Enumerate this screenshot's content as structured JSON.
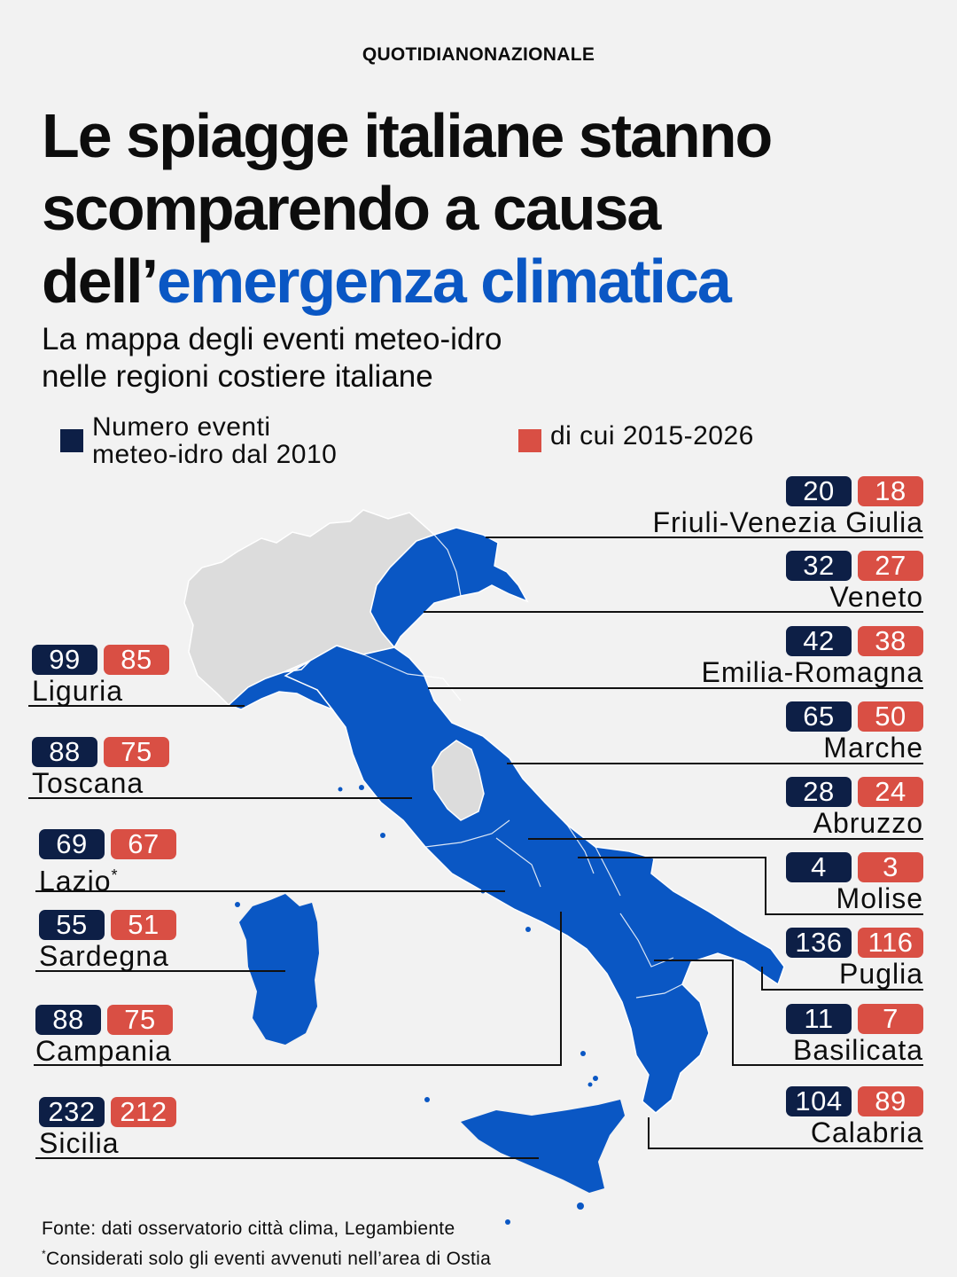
{
  "brand": "QUOTIDIANONAZIONALE",
  "title": {
    "line1": "Le spiagge italiane stanno",
    "line2": "scomparendo a causa",
    "line3_prefix": "dell’",
    "line3_highlight": "emergenza climatica"
  },
  "subtitle": {
    "line1": "La mappa degli eventi meteo-idro",
    "line2": "nelle regioni costiere italiane"
  },
  "legend": {
    "total_label": "Numero eventi\nmeteo-idro dal 2010",
    "recent_label": "di cui 2015-2026"
  },
  "colors": {
    "total": "#0d1f46",
    "recent": "#d94f44",
    "coastal_region": "#0a57c4",
    "other_region": "#dcdcdc",
    "accent": "#0a57c4"
  },
  "regions": {
    "friuli": {
      "name": "Friuli-Venezia Giulia",
      "total": "20",
      "recent": "18"
    },
    "veneto": {
      "name": "Veneto",
      "total": "32",
      "recent": "27"
    },
    "emilia": {
      "name": "Emilia-Romagna",
      "total": "42",
      "recent": "38"
    },
    "marche": {
      "name": "Marche",
      "total": "65",
      "recent": "50"
    },
    "abruzzo": {
      "name": "Abruzzo",
      "total": "28",
      "recent": "24"
    },
    "molise": {
      "name": "Molise",
      "total": "4",
      "recent": "3"
    },
    "puglia": {
      "name": "Puglia",
      "total": "136",
      "recent": "116"
    },
    "basilicata": {
      "name": "Basilicata",
      "total": "11",
      "recent": "7"
    },
    "calabria": {
      "name": "Calabria",
      "total": "104",
      "recent": "89"
    },
    "liguria": {
      "name": "Liguria",
      "total": "99",
      "recent": "85"
    },
    "toscana": {
      "name": "Toscana",
      "total": "88",
      "recent": "75"
    },
    "lazio": {
      "name": "Lazio",
      "total": "69",
      "recent": "67",
      "note_mark": "*"
    },
    "sardegna": {
      "name": "Sardegna",
      "total": "55",
      "recent": "51"
    },
    "campania": {
      "name": "Campania",
      "total": "88",
      "recent": "75"
    },
    "sicilia": {
      "name": "Sicilia",
      "total": "232",
      "recent": "212"
    }
  },
  "footer": {
    "source": "Fonte: dati osservatorio città clima, Legambiente",
    "note_mark": "*",
    "note": "Considerati solo gli eventi avvenuti nell’area di Ostia"
  }
}
